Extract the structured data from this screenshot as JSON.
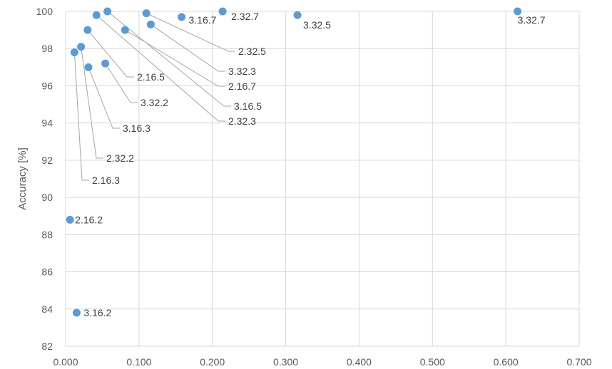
{
  "chart_data": {
    "type": "scatter",
    "title": "",
    "xlabel": "",
    "ylabel": "Accuracy [%]",
    "xlim": [
      0,
      0.7
    ],
    "ylim": [
      82,
      100
    ],
    "x_ticks": [
      "0.000",
      "0.100",
      "0.200",
      "0.300",
      "0.400",
      "0.500",
      "0.600",
      "0.700"
    ],
    "y_ticks": [
      "82",
      "84",
      "86",
      "88",
      "90",
      "92",
      "94",
      "96",
      "98",
      "100"
    ],
    "grid": true,
    "colors": {
      "series": "#5b9bd5",
      "grid": "#d9d9d9",
      "leader": "#a6a6a6"
    },
    "points": [
      {
        "label": "2.16.2",
        "x": 0.006,
        "y": 88.8
      },
      {
        "label": "3.16.2",
        "x": 0.015,
        "y": 83.8
      },
      {
        "label": "2.16.3",
        "x": 0.012,
        "y": 97.8
      },
      {
        "label": "2.32.2",
        "x": 0.021,
        "y": 98.1
      },
      {
        "label": "3.16.3",
        "x": 0.031,
        "y": 97.0
      },
      {
        "label": "2.16.5",
        "x": 0.03,
        "y": 99.0
      },
      {
        "label": "3.32.2",
        "x": 0.054,
        "y": 97.2
      },
      {
        "label": "2.32.3",
        "x": 0.042,
        "y": 99.8
      },
      {
        "label": "3.16.5",
        "x": 0.057,
        "y": 100.0
      },
      {
        "label": "2.16.7",
        "x": 0.081,
        "y": 99.0
      },
      {
        "label": "3.32.3",
        "x": 0.116,
        "y": 99.3
      },
      {
        "label": "2.32.5",
        "x": 0.11,
        "y": 99.9
      },
      {
        "label": "3.16.7",
        "x": 0.158,
        "y": 99.7
      },
      {
        "label": "2.32.7",
        "x": 0.214,
        "y": 100.0
      },
      {
        "label": "3.32.5",
        "x": 0.316,
        "y": 99.8
      },
      {
        "label": "3.32.7",
        "x": 0.616,
        "y": 100.0
      }
    ]
  }
}
